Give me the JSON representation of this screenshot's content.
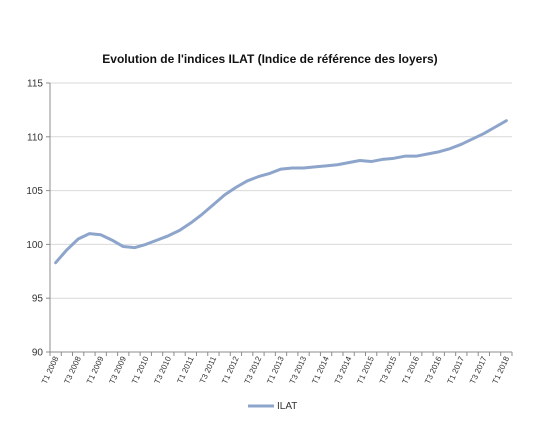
{
  "chart_data": {
    "type": "line",
    "title": "Evolution de l'indices ILAT (Indice de référence des loyers)",
    "xlabel": "",
    "ylabel": "",
    "ylim": [
      90,
      115
    ],
    "yticks": [
      90,
      95,
      100,
      105,
      110,
      115
    ],
    "grid": true,
    "legend_position": "bottom",
    "x": [
      "T1 2008",
      "T2 2008",
      "T3 2008",
      "T4 2008",
      "T1 2009",
      "T2 2009",
      "T3 2009",
      "T4 2009",
      "T1 2010",
      "T2 2010",
      "T3 2010",
      "T4 2010",
      "T1 2011",
      "T2 2011",
      "T3 2011",
      "T4 2011",
      "T1 2012",
      "T2 2012",
      "T3 2012",
      "T4 2012",
      "T1 2013",
      "T2 2013",
      "T3 2013",
      "T4 2013",
      "T1 2014",
      "T2 2014",
      "T3 2014",
      "T4 2014",
      "T1 2015",
      "T2 2015",
      "T3 2015",
      "T4 2015",
      "T1 2016",
      "T2 2016",
      "T3 2016",
      "T4 2016",
      "T1 2017",
      "T2 2017",
      "T3 2017",
      "T4 2017",
      "T1 2018"
    ],
    "x_tick_labels": [
      "T1 2008",
      "T3 2008",
      "T1 2009",
      "T3 2009",
      "T1 2010",
      "T3 2010",
      "T1 2011",
      "T3 2011",
      "T1 2012",
      "T3 2012",
      "T1 2013",
      "T3 2013",
      "T1 2014",
      "T3 2014",
      "T1 2015",
      "T3 2015",
      "T1 2016",
      "T3 2016",
      "T1 2017",
      "T3 2017",
      "T1 2018"
    ],
    "series": [
      {
        "name": "ILAT",
        "color": "#8EA5CB",
        "values": [
          98.3,
          99.5,
          100.5,
          101.0,
          100.9,
          100.4,
          99.8,
          99.7,
          100.0,
          100.4,
          100.8,
          101.3,
          102.0,
          102.8,
          103.7,
          104.6,
          105.3,
          105.9,
          106.3,
          106.6,
          107.0,
          107.1,
          107.1,
          107.2,
          107.3,
          107.4,
          107.6,
          107.8,
          107.7,
          107.9,
          108.0,
          108.2,
          108.2,
          108.4,
          108.6,
          108.9,
          109.3,
          109.8,
          110.3,
          110.9,
          111.5
        ]
      }
    ]
  }
}
